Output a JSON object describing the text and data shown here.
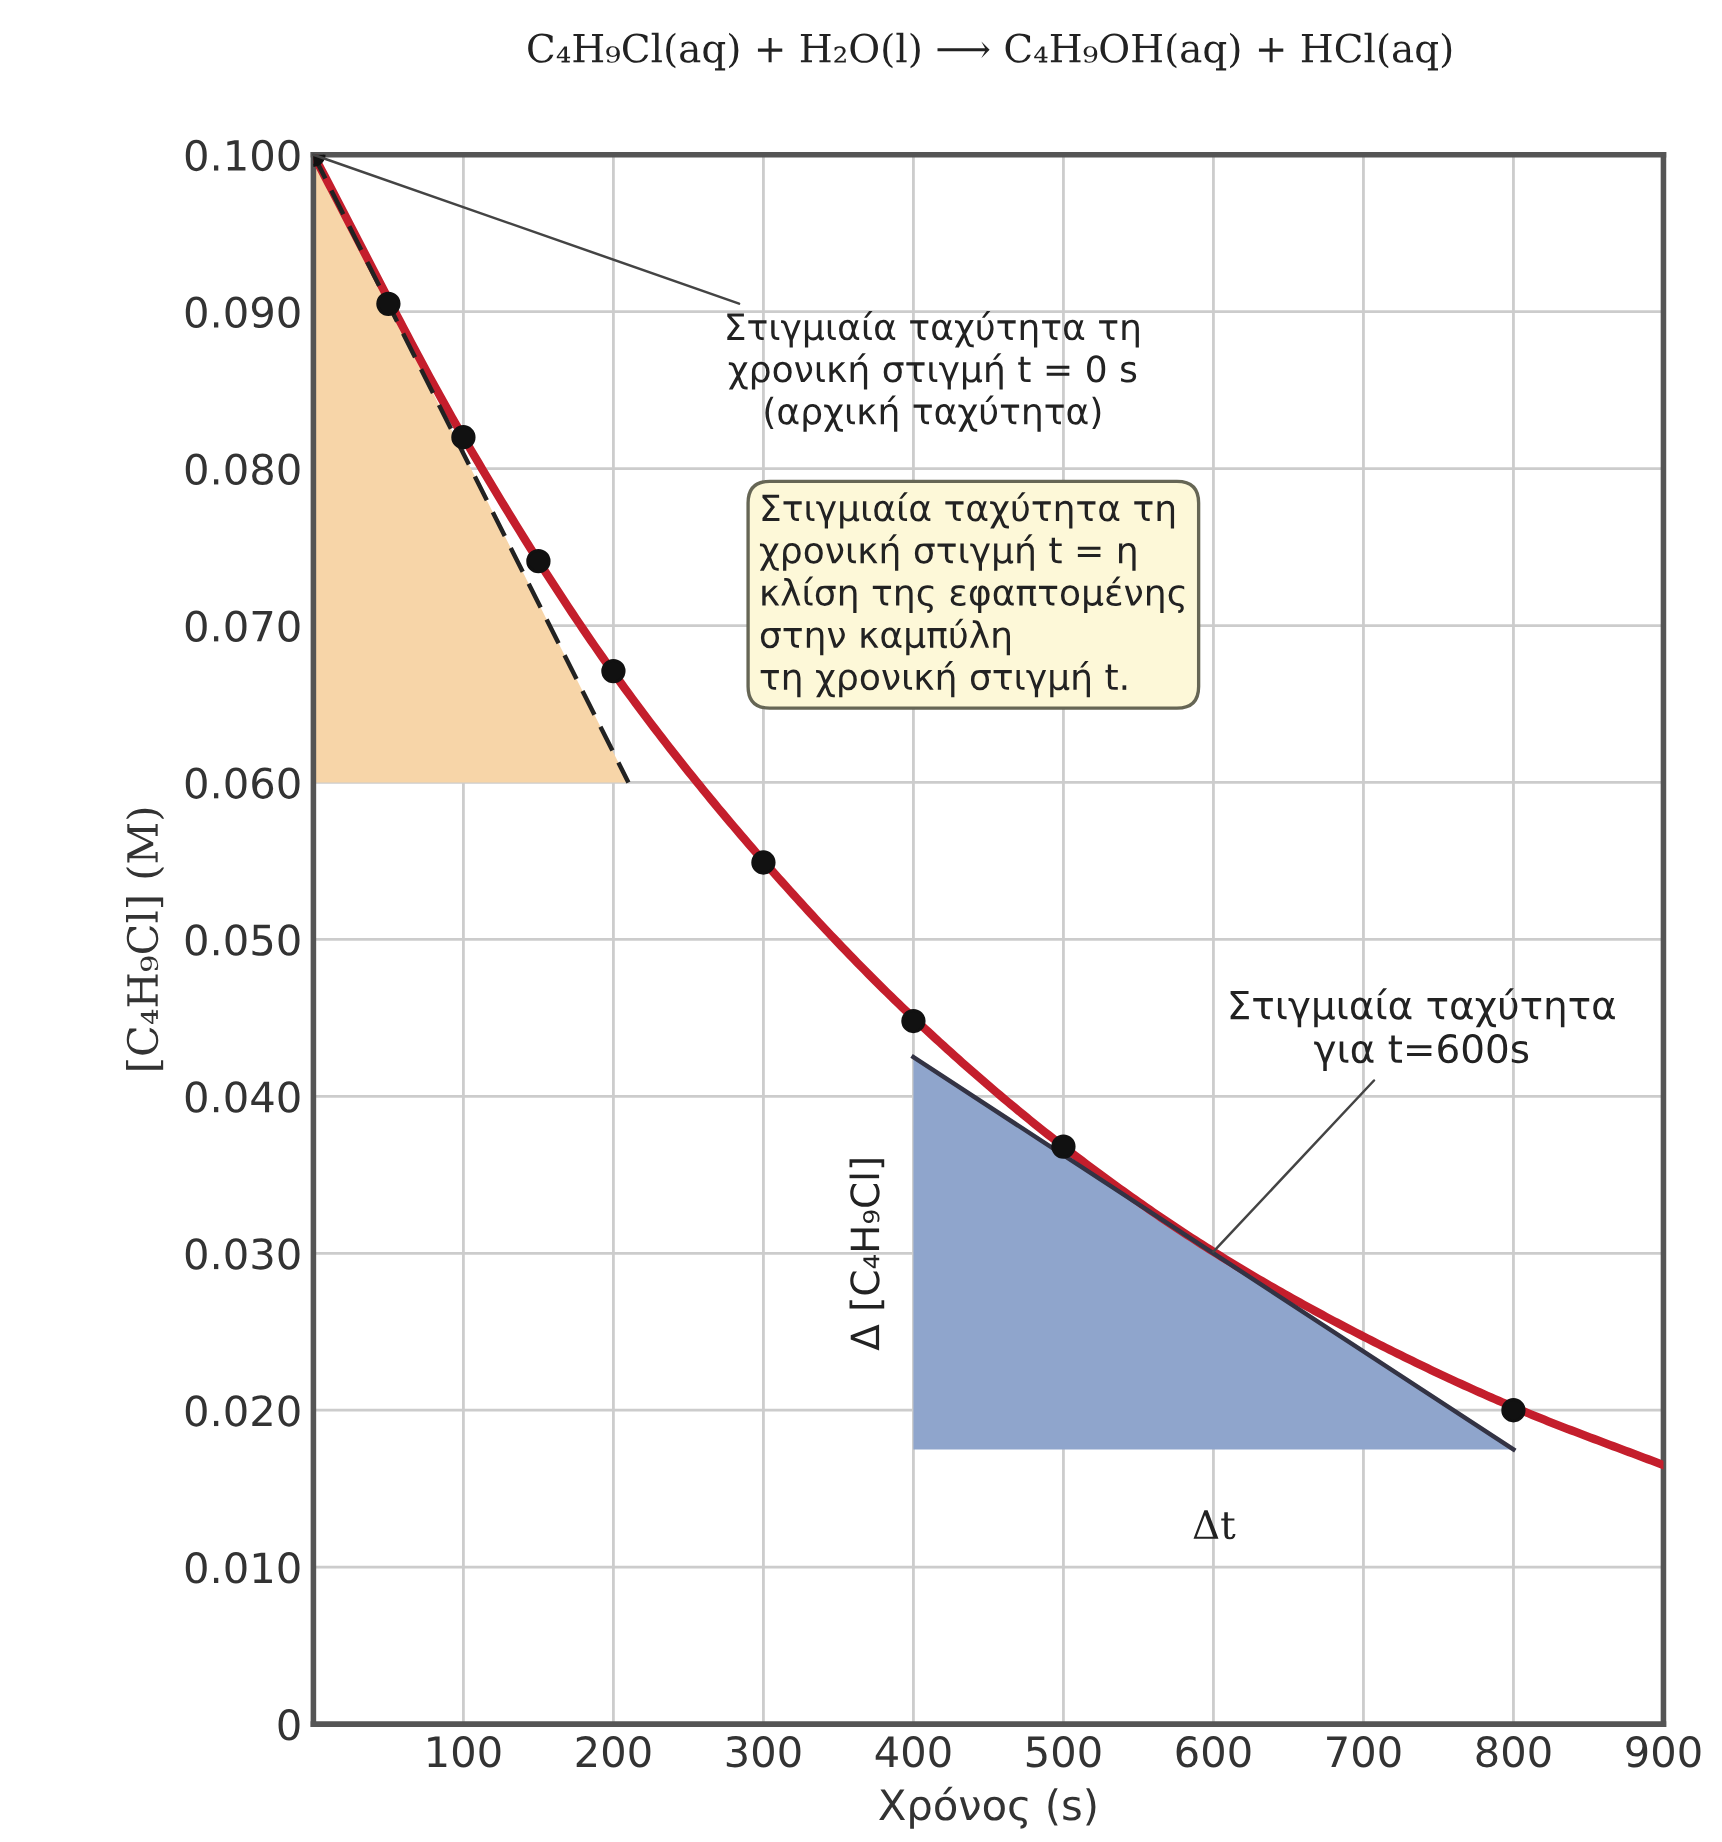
{
  "chart_data": {
    "type": "scatter",
    "title": "C₄H₉Cl(aq) + H₂O(l) ⟶ C₄H₉OH(aq) + HCl(aq)",
    "xlabel": "Χρόνος (s)",
    "ylabel": "[C₄H₉Cl] (M)",
    "xlim": [
      0,
      900
    ],
    "xticks": [
      100,
      200,
      300,
      400,
      500,
      600,
      700,
      800,
      900
    ],
    "ylim": [
      0,
      0.1
    ],
    "yticks": [
      {
        "value": 0,
        "label": "0"
      },
      {
        "value": 0.01,
        "label": "0.010"
      },
      {
        "value": 0.02,
        "label": "0.020"
      },
      {
        "value": 0.03,
        "label": "0.030"
      },
      {
        "value": 0.04,
        "label": "0.040"
      },
      {
        "value": 0.05,
        "label": "0.050"
      },
      {
        "value": 0.06,
        "label": "0.060"
      },
      {
        "value": 0.07,
        "label": "0.070"
      },
      {
        "value": 0.08,
        "label": "0.080"
      },
      {
        "value": 0.09,
        "label": "0.090"
      },
      {
        "value": 0.1,
        "label": "0.100"
      }
    ],
    "grid": true,
    "series": [
      {
        "type": "line",
        "color": "#c41e2c",
        "x": [
          0,
          100,
          200,
          300,
          400,
          500,
          600,
          700,
          800,
          900
        ],
        "values": [
          0.1,
          0.082,
          0.067,
          0.055,
          0.045,
          0.0368,
          0.0301,
          0.0247,
          0.0202,
          0.0165
        ],
        "marker": "none",
        "line_style": "solid"
      },
      {
        "type": "line",
        "color": "#222222",
        "x": [
          0,
          210
        ],
        "values": [
          0.1,
          0.06
        ],
        "marker": "none",
        "line_style": "dashed"
      },
      {
        "type": "line",
        "color": "#333344",
        "x": [
          400,
          800
        ],
        "values": [
          0.0425,
          0.0175
        ],
        "marker": "none",
        "line_style": "solid"
      },
      {
        "color": "#111111",
        "x": [
          0,
          50,
          100,
          150,
          200,
          300,
          400,
          500,
          800
        ],
        "values": [
          0.1,
          0.0905,
          0.082,
          0.0741,
          0.0671,
          0.0549,
          0.0448,
          0.0368,
          0.02
        ],
        "marker": "circle"
      }
    ],
    "annotations": [
      {
        "text": "Στιγμιαία ταχύτητα τη\nχρονική στιγμή t = 0 s\n(αρχική ταχύτητα)",
        "x": 0,
        "y": 0.1
      },
      "Στιγμιαία ταχύτητα τη\nχρονική στιγμή t = η\nκλίση της εφαπτομένης\nστην καμπύλη\nτη χρονική στιγμή t.",
      {
        "text": "Στιγμιαία ταχύτητα\nγια t=600s",
        "x": 600,
        "y": 0.0301
      },
      "Δ [C₄H₉Cl]",
      "Δt"
    ]
  }
}
